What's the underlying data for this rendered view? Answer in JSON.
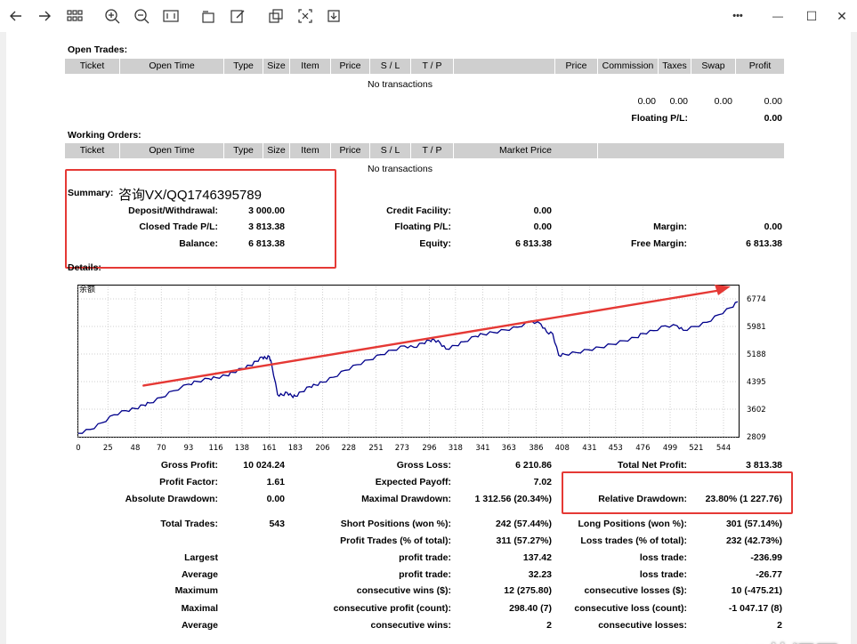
{
  "toolbar": {
    "icons": [
      "back-icon",
      "forward-icon",
      "grid-icon",
      "zoom-in-icon",
      "zoom-out-icon",
      "fit-page-icon",
      "rotate-icon",
      "edit-icon",
      "copy-icon",
      "crop-icon",
      "save-icon",
      "more-icon",
      "minimize-icon",
      "maximize-icon",
      "close-icon"
    ],
    "more": "•••",
    "minimize": "—",
    "maximize": "☐",
    "close": "✕"
  },
  "open_trades": {
    "title": "Open Trades:",
    "columns": [
      "Ticket",
      "Open Time",
      "Type",
      "Size",
      "Item",
      "Price",
      "S / L",
      "T / P",
      "",
      "Price",
      "Commission",
      "Taxes",
      "Swap",
      "Profit"
    ],
    "empty": "No transactions",
    "totals": [
      "0.00",
      "0.00",
      "0.00",
      "0.00"
    ],
    "floating_label": "Floating P/L:",
    "floating_value": "0.00"
  },
  "working_orders": {
    "title": "Working Orders:",
    "columns": [
      "Ticket",
      "Open Time",
      "Type",
      "Size",
      "Item",
      "Price",
      "S / L",
      "T / P",
      "Market Price",
      ""
    ],
    "empty": "No transactions"
  },
  "summary": {
    "title": "Summary:",
    "annotation": "咨询VX/QQ1746395789",
    "deposit_label": "Deposit/Withdrawal:",
    "deposit_value": "3 000.00",
    "closed_label": "Closed Trade P/L:",
    "closed_value": "3 813.38",
    "balance_label": "Balance:",
    "balance_value": "6 813.38",
    "credit_label": "Credit Facility:",
    "credit_value": "0.00",
    "floating_label": "Floating P/L:",
    "floating_value": "0.00",
    "equity_label": "Equity:",
    "equity_value": "6 813.38",
    "margin_label": "Margin:",
    "margin_value": "0.00",
    "free_margin_label": "Free Margin:",
    "free_margin_value": "6 813.38"
  },
  "details": {
    "title": "Details:"
  },
  "chart_data": {
    "type": "line",
    "legend": "余额",
    "x_ticks": [
      0,
      25,
      48,
      70,
      93,
      116,
      138,
      161,
      183,
      206,
      228,
      251,
      273,
      296,
      318,
      341,
      363,
      386,
      408,
      431,
      453,
      476,
      499,
      521,
      544
    ],
    "y_ticks": [
      6774,
      5981,
      5188,
      4395,
      3602,
      2809
    ],
    "ylim": [
      2809,
      6774
    ],
    "xlim": [
      0,
      556
    ],
    "colors": {
      "line": "#00008b",
      "trend": "#e53935"
    },
    "series": [
      {
        "x": [
          0,
          10,
          20,
          30,
          40,
          48,
          55,
          60,
          70,
          80,
          93,
          100,
          110,
          116,
          125,
          130,
          138,
          145,
          150,
          155,
          158,
          161,
          163,
          168,
          172,
          176,
          180,
          183,
          188,
          195,
          200,
          206,
          215,
          225,
          235,
          245,
          255,
          265,
          275,
          283,
          290,
          296,
          300,
          305,
          310,
          318,
          325,
          335,
          341,
          350,
          360,
          370,
          382,
          390,
          395,
          400,
          405,
          410,
          420,
          430,
          440,
          450,
          460,
          470,
          476,
          485,
          495,
          505,
          510,
          520,
          530,
          540,
          550,
          556
        ],
        "y": [
          2909,
          3020,
          3210,
          3440,
          3560,
          3620,
          3720,
          3780,
          3940,
          4130,
          4320,
          4400,
          4480,
          4510,
          4570,
          4660,
          4770,
          4860,
          4980,
          5100,
          5070,
          5120,
          4900,
          4020,
          4010,
          4080,
          3980,
          3975,
          4100,
          4250,
          4300,
          4380,
          4520,
          4720,
          4880,
          5020,
          5170,
          5300,
          5420,
          5380,
          5500,
          5580,
          5600,
          5510,
          5330,
          5430,
          5540,
          5700,
          5760,
          5810,
          5880,
          5960,
          6140,
          6050,
          5820,
          5770,
          5150,
          5180,
          5230,
          5310,
          5380,
          5470,
          5570,
          5660,
          5780,
          5860,
          6000,
          6000,
          5870,
          5980,
          6100,
          6320,
          6520,
          6690
        ]
      }
    ]
  },
  "stats": {
    "gross_profit_label": "Gross Profit:",
    "gross_profit_value": "10 024.24",
    "gross_loss_label": "Gross Loss:",
    "gross_loss_value": "6 210.86",
    "total_net_label": "Total Net Profit:",
    "total_net_value": "3 813.38",
    "profit_factor_label": "Profit Factor:",
    "profit_factor_value": "1.61",
    "expected_payoff_label": "Expected Payoff:",
    "expected_payoff_value": "7.02",
    "abs_dd_label": "Absolute Drawdown:",
    "abs_dd_value": "0.00",
    "max_dd_label": "Maximal Drawdown:",
    "max_dd_value": "1 312.56 (20.34%)",
    "rel_dd_label": "Relative Drawdown:",
    "rel_dd_value": "23.80% (1 227.76)",
    "total_trades_label": "Total Trades:",
    "total_trades_value": "543",
    "short_label": "Short Positions (won %):",
    "short_value": "242 (57.44%)",
    "long_label": "Long Positions (won %):",
    "long_value": "301 (57.14%)",
    "profit_trades_label": "Profit Trades (% of total):",
    "profit_trades_value": "311 (57.27%)",
    "loss_trades_label": "Loss trades (% of total):",
    "loss_trades_value": "232 (42.73%)",
    "largest_label": "Largest",
    "largest_profit_label": "profit trade:",
    "largest_profit_value": "137.42",
    "largest_loss_label": "loss trade:",
    "largest_loss_value": "-236.99",
    "average_label": "Average",
    "average_profit_label": "profit trade:",
    "average_profit_value": "32.23",
    "average_loss_label": "loss trade:",
    "average_loss_value": "-26.77",
    "maximum_label": "Maximum",
    "max_cons_wins_label": "consecutive wins ($):",
    "max_cons_wins_value": "12 (275.80)",
    "max_cons_losses_label": "consecutive losses ($):",
    "max_cons_losses_value": "10 (-475.21)",
    "maximal_label": "Maximal",
    "maximal_profit_label": "consecutive profit (count):",
    "maximal_profit_value": "298.40 (7)",
    "maximal_loss_label": "consecutive loss (count):",
    "maximal_loss_value": "-1 047.17 (8)",
    "avg2_label": "Average",
    "avg_cons_wins_label": "consecutive wins:",
    "avg_cons_wins_value": "2",
    "avg_cons_losses_label": "consecutive losses:",
    "avg_cons_losses_value": "2"
  },
  "watermark": "518外汇网"
}
